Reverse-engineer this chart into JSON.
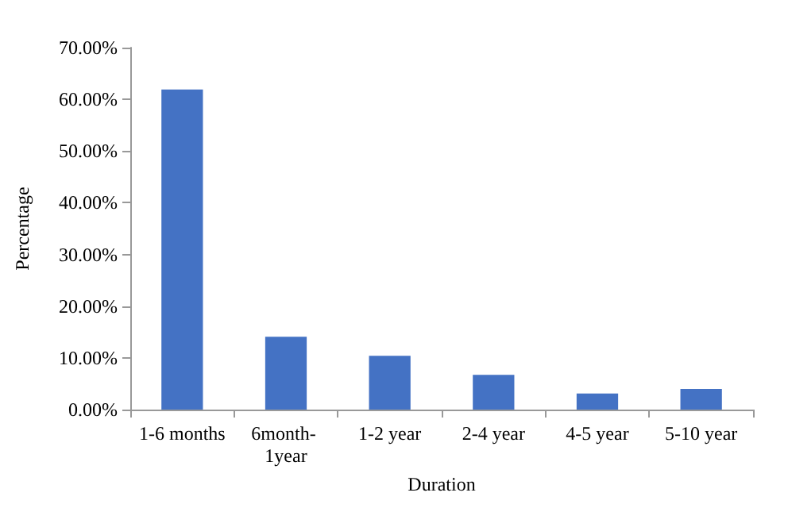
{
  "chart_data": {
    "type": "bar",
    "xlabel": "Duration",
    "ylabel": "Percentage",
    "categories": [
      "1-6 months",
      "6month- 1year",
      "1-2 year",
      "2-4 year",
      "4-5 year",
      "5-10 year"
    ],
    "values": [
      61.9,
      14.1,
      10.4,
      6.7,
      3.1,
      4.0
    ],
    "color": "#4472c4",
    "ylim": [
      0,
      70
    ],
    "yticks": [
      {
        "value": 0,
        "label": "0.00%"
      },
      {
        "value": 10,
        "label": "10.00%"
      },
      {
        "value": 20,
        "label": "20.00%"
      },
      {
        "value": 30,
        "label": "30.00%"
      },
      {
        "value": 40,
        "label": "40.00%"
      },
      {
        "value": 50,
        "label": "50.00%"
      },
      {
        "value": 60,
        "label": "60.00%"
      },
      {
        "value": 70,
        "label": "70.00%"
      }
    ],
    "grid": false
  }
}
